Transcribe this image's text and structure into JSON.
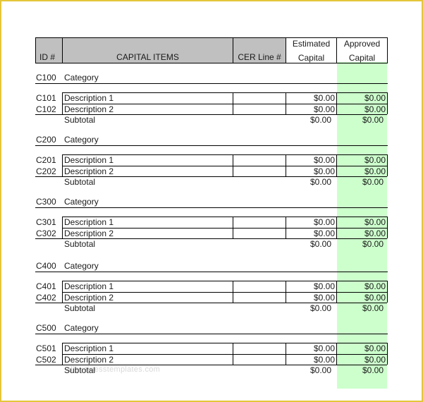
{
  "header": {
    "id": "ID #",
    "items": "CAPITAL ITEMS",
    "cer": "CER Line #",
    "estimated_1": "Estimated",
    "estimated_2": "Capital",
    "approved_1": "Approved",
    "approved_2": "Capital"
  },
  "sections": [
    {
      "code": "C100",
      "category": "Category",
      "rows": [
        {
          "id": "C101",
          "desc": "Description 1",
          "est": "$0.00",
          "app": "$0.00"
        },
        {
          "id": "C102",
          "desc": "Description 2",
          "est": "$0.00",
          "app": "$0.00"
        }
      ],
      "subtotal_label": "Subtotal",
      "subtotal_est": "$0.00",
      "subtotal_app": "$0.00"
    },
    {
      "code": "C200",
      "category": "Category",
      "rows": [
        {
          "id": "C201",
          "desc": "Description 1",
          "est": "$0.00",
          "app": "$0.00"
        },
        {
          "id": "C202",
          "desc": "Description 2",
          "est": "$0.00",
          "app": "$0.00"
        }
      ],
      "subtotal_label": "Subtotal",
      "subtotal_est": "$0.00",
      "subtotal_app": "$0.00"
    },
    {
      "code": "C300",
      "category": "Category",
      "rows": [
        {
          "id": "C301",
          "desc": "Description 1",
          "est": "$0.00",
          "app": "$0.00"
        },
        {
          "id": "C302",
          "desc": "Description 2",
          "est": "$0.00",
          "app": "$0.00"
        }
      ],
      "subtotal_label": "Subtotal",
      "subtotal_est": "$0.00",
      "subtotal_app": "$0.00"
    },
    {
      "code": "C400",
      "category": "Category",
      "rows": [
        {
          "id": "C401",
          "desc": "Description 1",
          "est": "$0.00",
          "app": "$0.00"
        },
        {
          "id": "C402",
          "desc": "Description 2",
          "est": "$0.00",
          "app": "$0.00"
        }
      ],
      "subtotal_label": "Subtotal",
      "subtotal_est": "$0.00",
      "subtotal_app": "$0.00"
    },
    {
      "code": "C500",
      "category": "Category",
      "rows": [
        {
          "id": "C501",
          "desc": "Description 1",
          "est": "$0.00",
          "app": "$0.00"
        },
        {
          "id": "C502",
          "desc": "Description 2",
          "est": "$0.00",
          "app": "$0.00"
        }
      ],
      "subtotal_label": "Subtotal",
      "subtotal_est": "$0.00",
      "subtotal_app": "$0.00"
    }
  ],
  "colors": {
    "frame": "#e4c63a",
    "header_fill": "#c0c0c0",
    "approved_fill": "#ccffcc"
  }
}
